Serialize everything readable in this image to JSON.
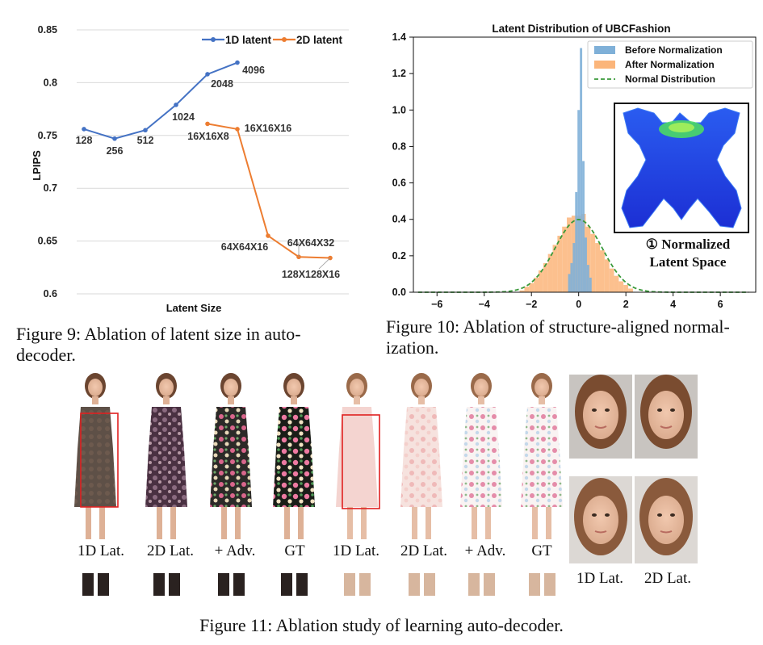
{
  "fig9": {
    "caption": "Figure 9:  Ablation of latent size in auto-decoder.",
    "caption_line1": "Figure 9:  Ablation of latent size in auto-",
    "caption_line2": "decoder.",
    "chart_data": {
      "type": "line",
      "title": "",
      "xlabel": "Latent Size",
      "ylabel": "LPIPS",
      "ylim": [
        0.6,
        0.85
      ],
      "yticks": [
        "0.85",
        "0.8",
        "0.75",
        "0.7",
        "0.65",
        "0.6"
      ],
      "grid": true,
      "legend_position": "top-right",
      "series": [
        {
          "name": "1D latent",
          "color": "#4472c4",
          "points": [
            {
              "label": "128",
              "y": 0.756
            },
            {
              "label": "256",
              "y": 0.747
            },
            {
              "label": "512",
              "y": 0.755
            },
            {
              "label": "1024",
              "y": 0.779
            },
            {
              "label": "2048",
              "y": 0.808
            },
            {
              "label": "4096",
              "y": 0.819
            }
          ]
        },
        {
          "name": "2D latent",
          "color": "#ed7d31",
          "points": [
            {
              "label": "16X16X8",
              "y": 0.761
            },
            {
              "label": "16X16X16",
              "y": 0.756
            },
            {
              "label": "64X64X16",
              "y": 0.655
            },
            {
              "label": "64X64X32",
              "y": 0.635
            },
            {
              "label": "128X128X16",
              "y": 0.634
            }
          ]
        }
      ]
    }
  },
  "fig10": {
    "caption_line1": "Figure 10: Ablation of structure-aligned normal-",
    "caption_line2": "ization.",
    "inset_label_line1": "① Normalized",
    "inset_label_line2": "Latent Space",
    "chart_data": {
      "type": "histogram",
      "title": "Latent Distribution of UBCFashion",
      "xlim": [
        -7,
        7.5
      ],
      "ylim": [
        0,
        1.4
      ],
      "xticks": [
        "−6",
        "−4",
        "−2",
        "0",
        "2",
        "4",
        "6"
      ],
      "xtick_values": [
        -6,
        -4,
        -2,
        0,
        2,
        4,
        6
      ],
      "yticks": [
        "0.0",
        "0.2",
        "0.4",
        "0.6",
        "0.8",
        "1.0",
        "1.2",
        "1.4"
      ],
      "ytick_values": [
        0,
        0.2,
        0.4,
        0.6,
        0.8,
        1.0,
        1.2,
        1.4
      ],
      "legend_position": "top-right",
      "series": [
        {
          "name": "Before Normalization",
          "color": "#7fb0d8",
          "bins": [
            {
              "x": -0.4,
              "y": 0.1
            },
            {
              "x": -0.3,
              "y": 0.16
            },
            {
              "x": -0.2,
              "y": 0.27
            },
            {
              "x": -0.1,
              "y": 0.55
            },
            {
              "x": 0.0,
              "y": 1.0
            },
            {
              "x": 0.1,
              "y": 1.34
            },
            {
              "x": 0.2,
              "y": 0.72
            },
            {
              "x": 0.3,
              "y": 0.3
            },
            {
              "x": 0.4,
              "y": 0.15
            },
            {
              "x": 0.5,
              "y": 0.08
            }
          ]
        },
        {
          "name": "After Normalization",
          "color": "#fbb57a",
          "bins": [
            {
              "x": -2.4,
              "y": 0.01
            },
            {
              "x": -2.2,
              "y": 0.03
            },
            {
              "x": -2.0,
              "y": 0.05
            },
            {
              "x": -1.8,
              "y": 0.08
            },
            {
              "x": -1.6,
              "y": 0.12
            },
            {
              "x": -1.4,
              "y": 0.16
            },
            {
              "x": -1.2,
              "y": 0.21
            },
            {
              "x": -1.0,
              "y": 0.26
            },
            {
              "x": -0.8,
              "y": 0.31
            },
            {
              "x": -0.6,
              "y": 0.36
            },
            {
              "x": -0.4,
              "y": 0.41
            },
            {
              "x": -0.2,
              "y": 0.42
            },
            {
              "x": 0.0,
              "y": 0.42
            },
            {
              "x": 0.2,
              "y": 0.43
            },
            {
              "x": 0.4,
              "y": 0.36
            },
            {
              "x": 0.6,
              "y": 0.32
            },
            {
              "x": 0.8,
              "y": 0.27
            },
            {
              "x": 1.0,
              "y": 0.23
            },
            {
              "x": 1.2,
              "y": 0.18
            },
            {
              "x": 1.4,
              "y": 0.13
            },
            {
              "x": 1.6,
              "y": 0.09
            },
            {
              "x": 1.8,
              "y": 0.06
            },
            {
              "x": 2.0,
              "y": 0.04
            },
            {
              "x": 2.2,
              "y": 0.02
            }
          ]
        },
        {
          "name": "Normal Distribution",
          "color": "#3a9a3a",
          "style": "dashed",
          "mean": 0,
          "std": 1
        }
      ]
    }
  },
  "fig11": {
    "caption": "Figure 11: Ablation study of learning auto-decoder.",
    "labels": [
      "1D Lat.",
      "2D Lat.",
      "+ Adv.",
      "GT",
      "1D Lat.",
      "2D Lat.",
      "+ Adv.",
      "GT"
    ],
    "face_labels": [
      "1D Lat.",
      "2D Lat."
    ]
  }
}
